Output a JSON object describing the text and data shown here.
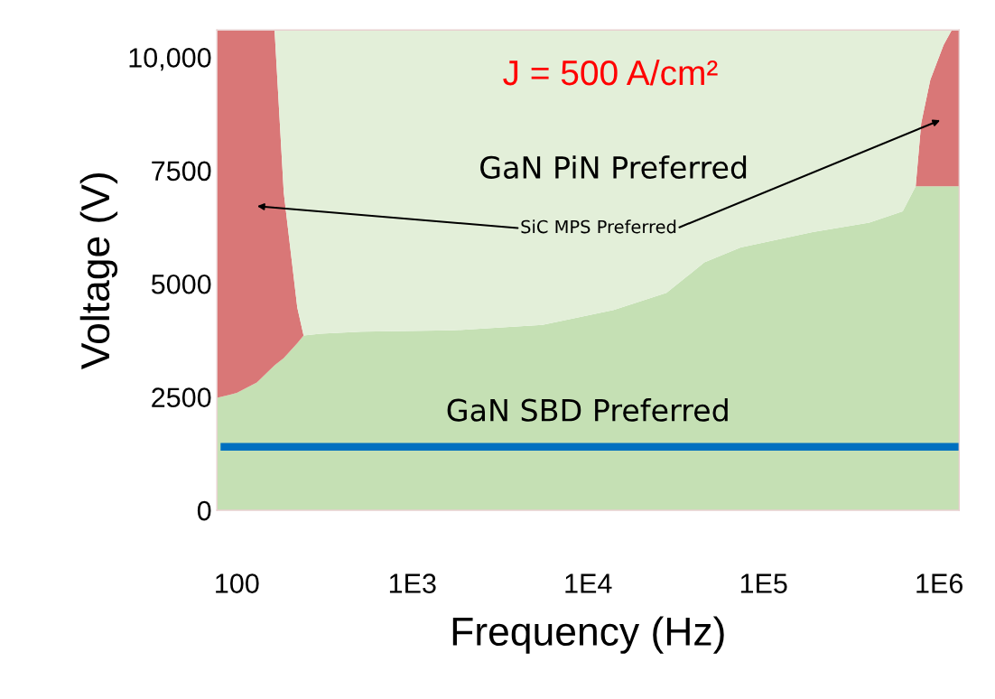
{
  "chart_data": {
    "type": "area",
    "stacked": true,
    "title": "J = 500 A/cm²",
    "xlabel": "Frequency (Hz)",
    "ylabel": "Voltage (V)",
    "log": "x",
    "x": [
      77,
      100,
      130,
      164,
      185,
      221,
      240,
      300,
      513,
      1670,
      5500,
      14000,
      28000,
      46000,
      74000,
      190000,
      400000,
      620000,
      735000,
      790000,
      890000,
      1060000,
      1180000,
      1300000
    ],
    "series": [
      {
        "name": "GaN SBD Preferred",
        "color": "#c5e0b4",
        "values": [
          2480,
          2590,
          2820,
          3200,
          3360,
          3690,
          3860,
          3900,
          3940,
          3970,
          4090,
          4420,
          4800,
          5470,
          5800,
          6140,
          6350,
          6600,
          7150,
          7150,
          7150,
          7150,
          7150,
          7150
        ]
      },
      {
        "name": "SiC MPS Preferred",
        "color": "#d97777",
        "values": [
          8120,
          8010,
          7780,
          7400,
          3650,
          780,
          0,
          0,
          0,
          0,
          0,
          0,
          0,
          0,
          0,
          0,
          0,
          0,
          0,
          1390,
          2350,
          3120,
          3450,
          3450
        ]
      },
      {
        "name": "GaN PiN Preferred",
        "color": "#e3efd9",
        "values": [
          0,
          0,
          0,
          0,
          3590,
          6130,
          6740,
          6700,
          6660,
          6630,
          6510,
          6180,
          5800,
          5130,
          4800,
          4460,
          4250,
          4000,
          3450,
          2060,
          1100,
          330,
          0,
          0
        ]
      }
    ],
    "xlim": [
      77,
      1300000
    ],
    "ylim": [
      0,
      10600
    ],
    "xticks": [
      {
        "value": 100,
        "label": "100"
      },
      {
        "value": 1000,
        "label": "1E3"
      },
      {
        "value": 10000,
        "label": "1E4"
      },
      {
        "value": 100000,
        "label": "1E5"
      },
      {
        "value": 1000000,
        "label": "1E6"
      }
    ],
    "yticks": [
      0,
      2500,
      5000,
      7500,
      {
        "value": 10000,
        "label": "10,000"
      }
    ],
    "ref_lines": [
      {
        "axis": "y",
        "value": 1400,
        "color": "#0070c0"
      }
    ],
    "grid": false,
    "legend": false
  }
}
